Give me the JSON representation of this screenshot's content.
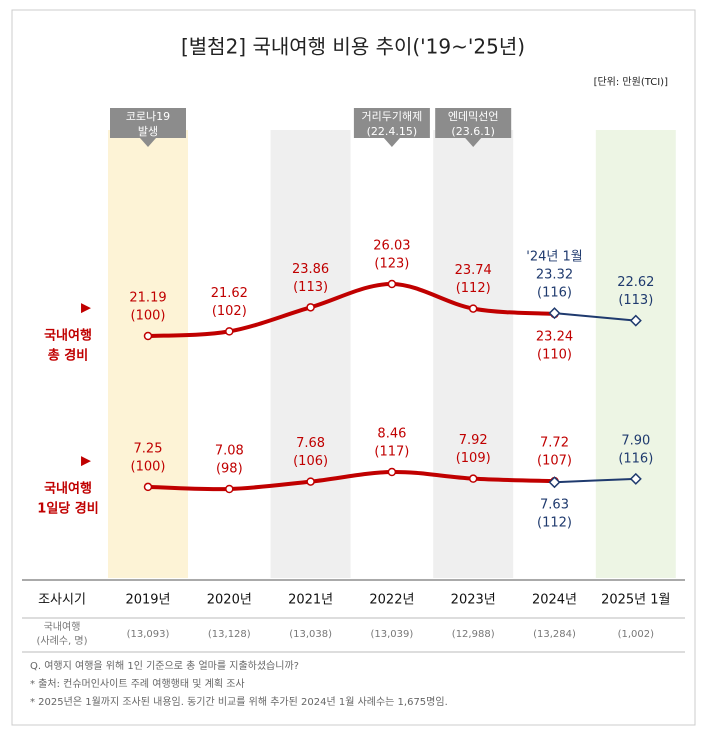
{
  "title": "[별첨2] 국내여행 비용 추이('19~'25년)",
  "unit": "[단위: 만원(TCI)]",
  "categories": [
    "2019년",
    "2020년",
    "2021년",
    "2022년",
    "2023년",
    "2024년",
    "2025년 1월"
  ],
  "annotations": [
    {
      "category": 0,
      "lines": [
        "코로나19",
        "발생"
      ]
    },
    {
      "category": 3,
      "lines": [
        "거리두기해제",
        "(22.4.15)"
      ]
    },
    {
      "category": 4,
      "lines": [
        "엔데믹선언",
        "(23.6.1)"
      ]
    }
  ],
  "chart_data": [
    {
      "type": "line",
      "label": [
        "▶",
        "국내여행",
        "총 경비"
      ],
      "series": [
        {
          "color": "#c00000",
          "values": [
            21.19,
            21.62,
            23.86,
            26.03,
            23.74,
            23.24,
            null
          ],
          "value_labels": [
            "21.19",
            "21.62",
            "23.86",
            "26.03",
            "23.74",
            "23.24",
            null
          ],
          "index_labels": [
            "(100)",
            "(102)",
            "(113)",
            "(123)",
            "(112)",
            "(110)",
            null
          ]
        },
        {
          "color": "#1f3a6e",
          "values": [
            null,
            null,
            null,
            null,
            null,
            23.32,
            22.62
          ],
          "value_labels": [
            null,
            null,
            null,
            null,
            null,
            "23.32",
            "22.62"
          ],
          "index_labels": [
            null,
            null,
            null,
            null,
            null,
            "(116)",
            "(113)"
          ],
          "note": "'24년 1월"
        }
      ]
    },
    {
      "type": "line",
      "label": [
        "▶",
        "국내여행",
        "1일당 경비"
      ],
      "series": [
        {
          "color": "#c00000",
          "values": [
            7.25,
            7.08,
            7.68,
            8.46,
            7.92,
            7.72,
            null
          ],
          "value_labels": [
            "7.25",
            "7.08",
            "7.68",
            "8.46",
            "7.92",
            "7.72",
            null
          ],
          "index_labels": [
            "(100)",
            "(98)",
            "(106)",
            "(117)",
            "(109)",
            "(107)",
            null
          ]
        },
        {
          "color": "#1f3a6e",
          "values": [
            null,
            null,
            null,
            null,
            null,
            7.63,
            7.9
          ],
          "value_labels": [
            null,
            null,
            null,
            null,
            null,
            "7.63",
            "7.90"
          ],
          "index_labels": [
            null,
            null,
            null,
            null,
            null,
            "(112)",
            "(116)"
          ]
        }
      ]
    }
  ],
  "table": {
    "header": "조사시기",
    "sample_header": [
      "국내여행",
      "(사례수, 명)"
    ],
    "samples": [
      "(13,093)",
      "(13,128)",
      "(13,038)",
      "(13,039)",
      "(12,988)",
      "(13,284)",
      "(1,002)"
    ]
  },
  "footnotes": [
    "Q. 여행지 여행을 위해 1인 기준으로 총 얼마를 지출하셨습니까?",
    "* 출처: 컨슈머인사이트 주례 여행행태 및 계획 조사",
    "* 2025년은 1월까지 조사된 내용임. 동기간 비교를 위해 추가된 2024년 1월 사례수는 1,675명임."
  ]
}
